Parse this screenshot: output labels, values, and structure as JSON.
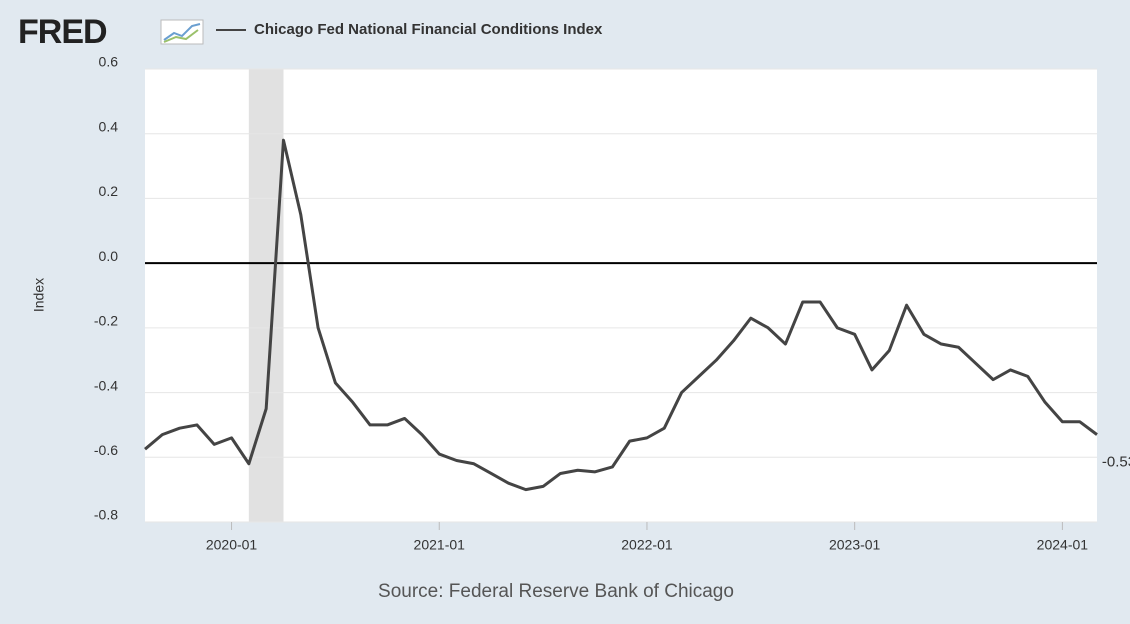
{
  "chart_data": {
    "type": "line",
    "logo": "FRED",
    "y_label": "Index",
    "source": "Source: Federal Reserve Bank of Chicago",
    "x": [
      "2019-08",
      "2019-09",
      "2019-10",
      "2019-11",
      "2019-12",
      "2020-01",
      "2020-02",
      "2020-03",
      "2020-04",
      "2020-05",
      "2020-06",
      "2020-07",
      "2020-08",
      "2020-09",
      "2020-10",
      "2020-11",
      "2020-12",
      "2021-01",
      "2021-02",
      "2021-03",
      "2021-04",
      "2021-05",
      "2021-06",
      "2021-07",
      "2021-08",
      "2021-09",
      "2021-10",
      "2021-11",
      "2021-12",
      "2022-01",
      "2022-02",
      "2022-03",
      "2022-04",
      "2022-05",
      "2022-06",
      "2022-07",
      "2022-08",
      "2022-09",
      "2022-10",
      "2022-11",
      "2022-12",
      "2023-01",
      "2023-02",
      "2023-03",
      "2023-04",
      "2023-05",
      "2023-06",
      "2023-07",
      "2023-08",
      "2023-09",
      "2023-10",
      "2023-11",
      "2023-12",
      "2024-01",
      "2024-02",
      "2024-03"
    ],
    "series": [
      {
        "name": "Chicago Fed National Financial Conditions Index",
        "color": "#444444",
        "values": [
          -0.575,
          -0.53,
          -0.51,
          -0.5,
          -0.56,
          -0.54,
          -0.62,
          -0.45,
          0.38,
          0.15,
          -0.2,
          -0.37,
          -0.43,
          -0.5,
          -0.5,
          -0.48,
          -0.53,
          -0.59,
          -0.61,
          -0.62,
          -0.65,
          -0.68,
          -0.7,
          -0.69,
          -0.65,
          -0.64,
          -0.645,
          -0.63,
          -0.55,
          -0.54,
          -0.51,
          -0.4,
          -0.35,
          -0.3,
          -0.24,
          -0.17,
          -0.2,
          -0.25,
          -0.12,
          -0.12,
          -0.2,
          -0.22,
          -0.33,
          -0.27,
          -0.13,
          -0.22,
          -0.25,
          -0.26,
          -0.31,
          -0.36,
          -0.33,
          -0.35,
          -0.43,
          -0.49,
          -0.49,
          -0.53
        ]
      }
    ],
    "xlim": [
      "2019-08",
      "2024-03"
    ],
    "xticks": [
      "2020-01",
      "2021-01",
      "2022-01",
      "2023-01",
      "2024-01"
    ],
    "ylim": [
      -0.8,
      0.6
    ],
    "yticks": [
      0.6,
      0.4,
      0.2,
      {
        "value": 0,
        "label": "0.0"
      },
      -0.2,
      -0.4,
      -0.6,
      -0.8
    ],
    "grid": true,
    "recession": {
      "start": "2020-02",
      "end": "2020-04"
    }
  }
}
